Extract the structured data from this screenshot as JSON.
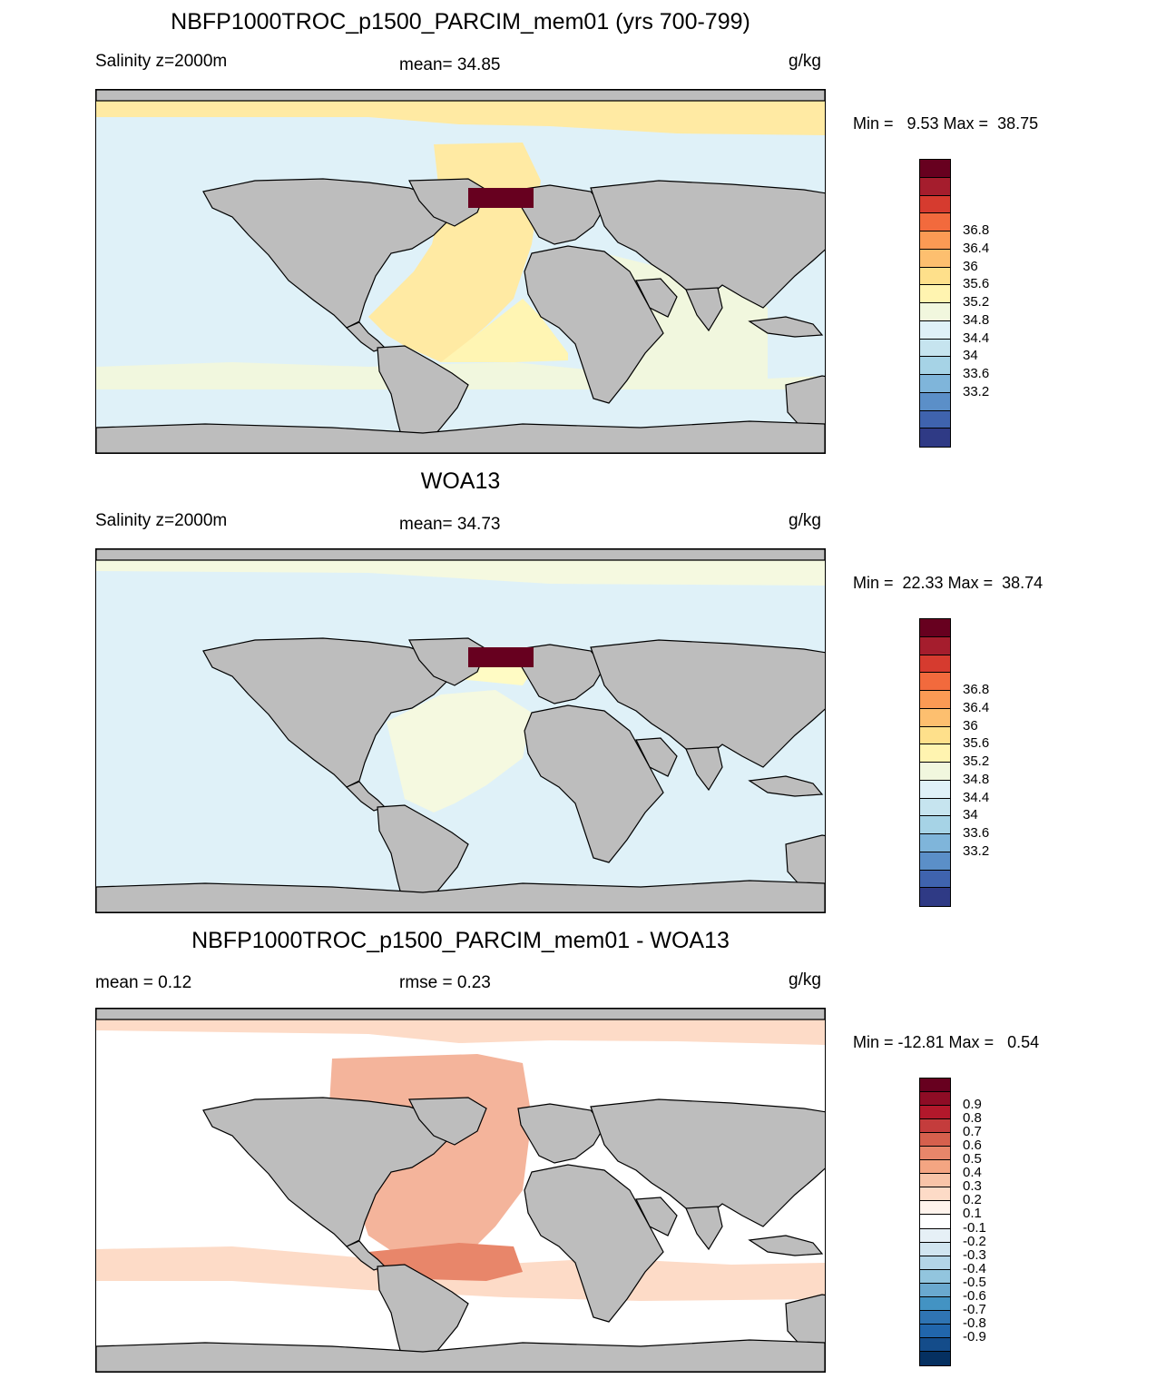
{
  "panels": [
    {
      "title": "NBFP1000TROC_p1500_PARCIM_mem01 (yrs 700-799)",
      "left_label": "Salinity z=2000m",
      "center_label": "mean=  34.85",
      "right_label": "g/kg",
      "minmax": "Min =   9.53 Max =  38.75",
      "ocean_fields": [
        {
          "name": "north-atlantic-saline",
          "color": "#ffeaa3"
        },
        {
          "name": "south-atlantic-saline",
          "color": "#fff5b3"
        },
        {
          "name": "indian-ocean",
          "color": "#f1f7de"
        },
        {
          "name": "pacific-and-southern",
          "color": "#dff1f8"
        },
        {
          "name": "mediterranean-high",
          "color": "#67001f"
        }
      ],
      "colorbar": {
        "labels": [
          "36.8",
          "36.4",
          "36",
          "35.6",
          "35.2",
          "34.8",
          "34.4",
          "34",
          "33.6",
          "33.2"
        ],
        "colors": [
          "#67001f",
          "#a51d2d",
          "#d63b2f",
          "#f26a3d",
          "#fb9a54",
          "#fdbf6f",
          "#fee08b",
          "#fff4b0",
          "#f1f7de",
          "#dff1f8",
          "#c6e4ef",
          "#a6d3e6",
          "#7fb5da",
          "#5b8fc8",
          "#3f63ae",
          "#2f3a85"
        ]
      }
    },
    {
      "title": "WOA13",
      "left_label": "Salinity z=2000m",
      "center_label": "mean=  34.73",
      "right_label": "g/kg",
      "minmax": "Min =  22.33 Max =  38.74",
      "ocean_fields": [
        {
          "name": "north-atlantic-saline",
          "color": "#fffbc4"
        },
        {
          "name": "south-atlantic",
          "color": "#f5f9e0"
        },
        {
          "name": "indian-ocean",
          "color": "#e4f2f6"
        },
        {
          "name": "pacific-and-southern",
          "color": "#dff1f8"
        },
        {
          "name": "mediterranean-high",
          "color": "#67001f"
        }
      ],
      "colorbar": {
        "labels": [
          "36.8",
          "36.4",
          "36",
          "35.6",
          "35.2",
          "34.8",
          "34.4",
          "34",
          "33.6",
          "33.2"
        ],
        "colors": [
          "#67001f",
          "#a51d2d",
          "#d63b2f",
          "#f26a3d",
          "#fb9a54",
          "#fdbf6f",
          "#fee08b",
          "#fff4b0",
          "#f1f7de",
          "#dff1f8",
          "#c6e4ef",
          "#a6d3e6",
          "#7fb5da",
          "#5b8fc8",
          "#3f63ae",
          "#2f3a85"
        ]
      }
    },
    {
      "title": "NBFP1000TROC_p1500_PARCIM_mem01 - WOA13",
      "left_label": "mean =   0.12",
      "center_label": "rmse =   0.23",
      "right_label": "g/kg",
      "minmax": "Min = -12.81 Max =   0.54",
      "ocean_fields": [
        {
          "name": "atlantic-bias",
          "color": "#f4b49b"
        },
        {
          "name": "southern-ocean-bias",
          "color": "#fddbc7"
        },
        {
          "name": "pacific-near-zero",
          "color": "#ffffff"
        },
        {
          "name": "argentine-basin-bias",
          "color": "#e8866a"
        }
      ],
      "colorbar": {
        "labels": [
          "0.9",
          "0.8",
          "0.7",
          "0.6",
          "0.5",
          "0.4",
          "0.3",
          "0.2",
          "0.1",
          "-0.1",
          "-0.2",
          "-0.3",
          "-0.4",
          "-0.5",
          "-0.6",
          "-0.7",
          "-0.8",
          "-0.9"
        ],
        "colors": [
          "#67001f",
          "#8e0c25",
          "#b2182b",
          "#c43c3c",
          "#d6604d",
          "#e8866a",
          "#f4a582",
          "#f8c4a8",
          "#fddbc7",
          "#fff3ec",
          "#ffffff",
          "#e6f0f6",
          "#d1e5f0",
          "#b3d5e7",
          "#92c5de",
          "#6aa9cf",
          "#4393c3",
          "#2f74b3",
          "#2166ac",
          "#144c8a",
          "#053061"
        ]
      }
    }
  ]
}
